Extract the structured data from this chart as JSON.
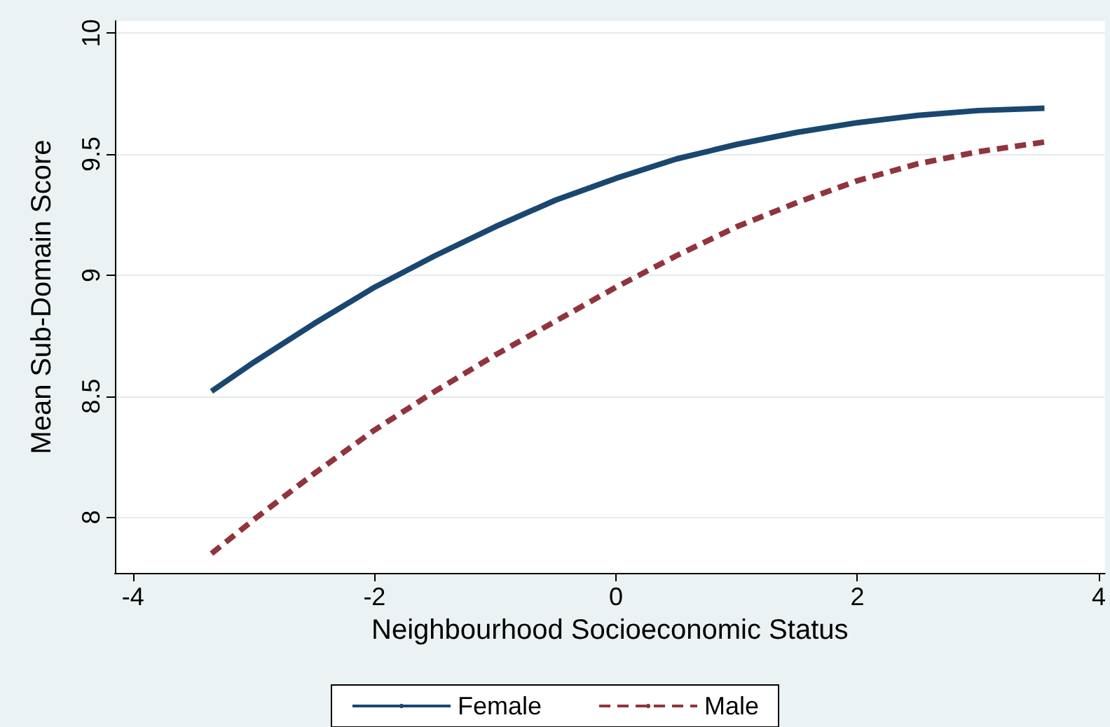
{
  "chart_data": {
    "type": "line",
    "xlabel": "Neighbourhood Socioeconomic Status",
    "ylabel": "Mean Sub-Domain Score",
    "x": [
      -3.35,
      -3,
      -2.5,
      -2,
      -1.5,
      -1,
      -0.5,
      0,
      0.5,
      1,
      1.5,
      2,
      2.5,
      3,
      3.55
    ],
    "series": [
      {
        "name": "Female",
        "color": "#1a476f",
        "line_style": "solid",
        "values": [
          8.52,
          8.64,
          8.8,
          8.95,
          9.08,
          9.2,
          9.31,
          9.4,
          9.48,
          9.54,
          9.59,
          9.63,
          9.66,
          9.68,
          9.69
        ]
      },
      {
        "name": "Male",
        "color": "#90353b",
        "line_style": "dashed",
        "values": [
          7.85,
          7.99,
          8.18,
          8.36,
          8.52,
          8.67,
          8.81,
          8.95,
          9.08,
          9.2,
          9.3,
          9.39,
          9.46,
          9.51,
          9.55
        ]
      }
    ],
    "xlim": [
      -4.15,
      4.05
    ],
    "xticks": [
      -4,
      -2,
      0,
      2,
      4
    ],
    "ylim": [
      7.77,
      10.05
    ],
    "yticks": [
      8,
      8.5,
      9,
      9.5,
      10
    ],
    "grid": "y",
    "legend": "bottom",
    "marker": "none"
  }
}
